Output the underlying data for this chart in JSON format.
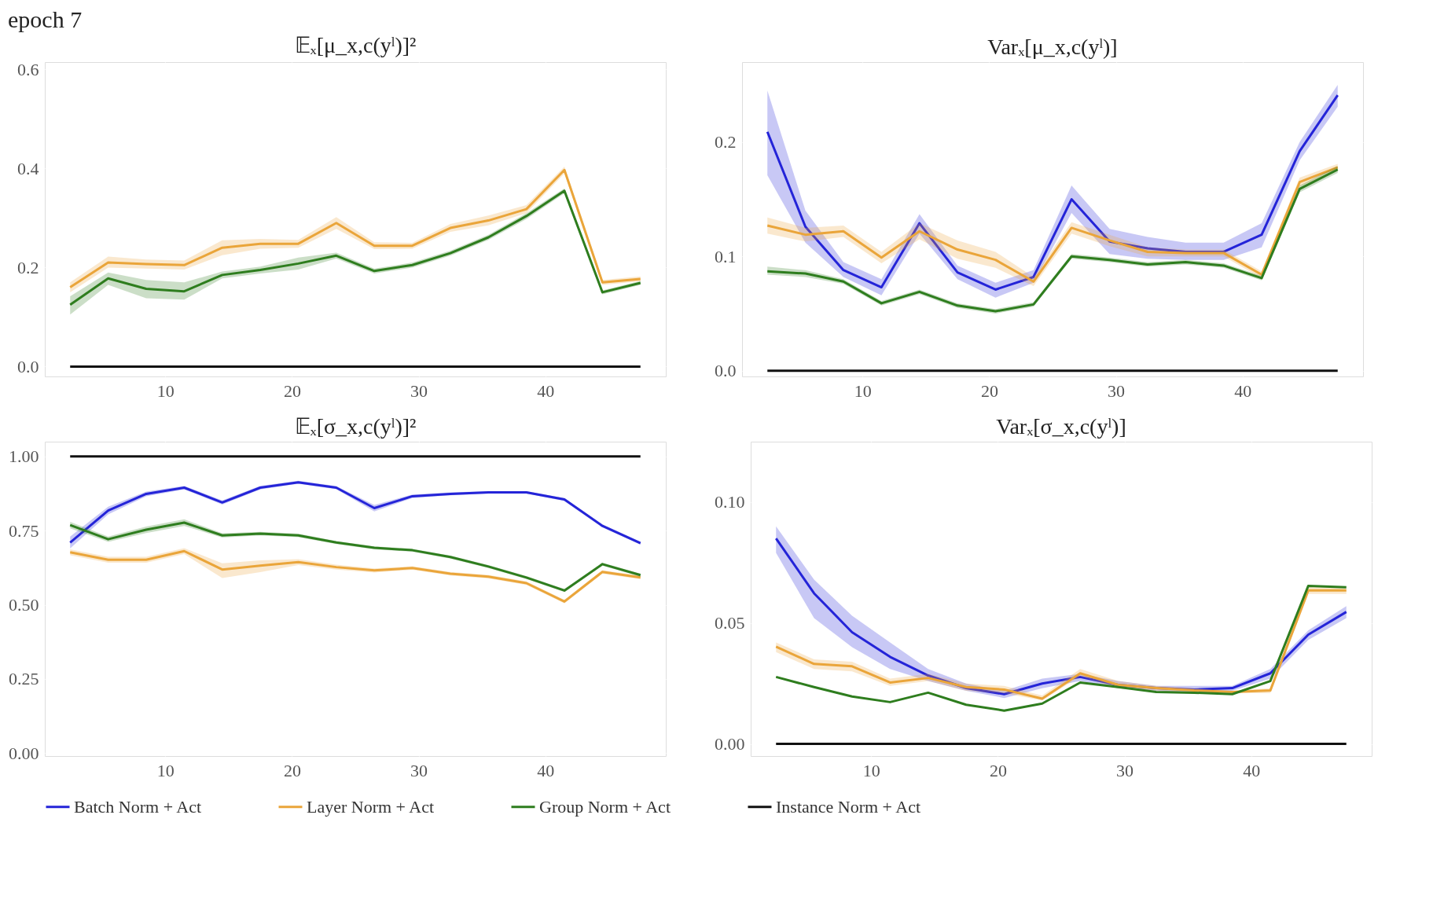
{
  "chart_data": [
    {
      "type": "line",
      "title": "𝔼ₓ[μ_x,c(yˡ)]²",
      "annotations": [
        "epoch 7"
      ],
      "x": [
        2.5,
        5.5,
        8.5,
        11.5,
        14.5,
        17.5,
        20.5,
        23.5,
        26.5,
        29.5,
        32.5,
        35.5,
        38.5,
        41.5,
        44.5,
        47.5
      ],
      "xlim": [
        0.5,
        49.5
      ],
      "xticks": [
        10,
        20,
        30,
        40
      ],
      "ylim": [
        -0.02,
        0.615
      ],
      "yticks": [
        {
          "value": 0,
          "label": "0.0"
        },
        0.2,
        0.4,
        0.6
      ],
      "grid": true,
      "legend": "bottom",
      "series": [
        {
          "name": "Layer Norm + Act",
          "color": "#eaa53a",
          "values": [
            0.16,
            0.21,
            0.207,
            0.205,
            0.24,
            0.248,
            0.248,
            0.29,
            0.244,
            0.244,
            0.28,
            0.295,
            0.318,
            0.397,
            0.17,
            0.177
          ],
          "lower": [
            0.15,
            0.2,
            0.198,
            0.196,
            0.225,
            0.238,
            0.24,
            0.278,
            0.237,
            0.238,
            0.272,
            0.285,
            0.31,
            0.39,
            0.165,
            0.172
          ],
          "upper": [
            0.17,
            0.222,
            0.216,
            0.214,
            0.255,
            0.258,
            0.256,
            0.302,
            0.251,
            0.25,
            0.288,
            0.305,
            0.326,
            0.404,
            0.175,
            0.182
          ]
        },
        {
          "name": "Group Norm + Act",
          "color": "#2e7d1e",
          "values": [
            0.125,
            0.178,
            0.157,
            0.152,
            0.185,
            0.195,
            0.208,
            0.224,
            0.193,
            0.205,
            0.229,
            0.261,
            0.304,
            0.355,
            0.15,
            0.169
          ],
          "lower": [
            0.105,
            0.165,
            0.138,
            0.135,
            0.178,
            0.188,
            0.196,
            0.218,
            0.188,
            0.2,
            0.224,
            0.256,
            0.298,
            0.35,
            0.146,
            0.165
          ],
          "upper": [
            0.142,
            0.19,
            0.175,
            0.17,
            0.192,
            0.202,
            0.22,
            0.23,
            0.198,
            0.21,
            0.234,
            0.266,
            0.31,
            0.36,
            0.154,
            0.173
          ]
        },
        {
          "name": "Instance Norm + Act",
          "color": "#111111",
          "values": [
            0,
            0,
            0,
            0,
            0,
            0,
            0,
            0,
            0,
            0,
            0,
            0,
            0,
            0,
            0,
            0
          ]
        }
      ]
    },
    {
      "type": "line",
      "title": "Varₓ[μ_x,c(yˡ)]",
      "x": [
        2.5,
        5.5,
        8.5,
        11.5,
        14.5,
        17.5,
        20.5,
        23.5,
        26.5,
        29.5,
        32.5,
        35.5,
        38.5,
        41.5,
        44.5,
        47.5
      ],
      "xlim": [
        0.5,
        49.5
      ],
      "xticks": [
        10,
        20,
        30,
        40
      ],
      "ylim": [
        -0.005,
        0.27
      ],
      "yticks": [
        {
          "value": 0,
          "label": "0.0"
        },
        0.1,
        0.2
      ],
      "grid": true,
      "legend": "bottom",
      "series": [
        {
          "name": "Batch Norm + Act",
          "color": "#2424d8",
          "values": [
            0.209,
            0.126,
            0.088,
            0.073,
            0.129,
            0.086,
            0.071,
            0.082,
            0.15,
            0.113,
            0.107,
            0.104,
            0.104,
            0.119,
            0.192,
            0.241
          ],
          "lower": [
            0.171,
            0.112,
            0.082,
            0.066,
            0.12,
            0.08,
            0.064,
            0.077,
            0.138,
            0.102,
            0.098,
            0.097,
            0.097,
            0.108,
            0.184,
            0.231
          ],
          "upper": [
            0.245,
            0.14,
            0.095,
            0.08,
            0.137,
            0.092,
            0.077,
            0.088,
            0.162,
            0.124,
            0.117,
            0.112,
            0.112,
            0.129,
            0.2,
            0.25
          ]
        },
        {
          "name": "Layer Norm + Act",
          "color": "#eaa53a",
          "values": [
            0.127,
            0.119,
            0.122,
            0.099,
            0.122,
            0.106,
            0.097,
            0.078,
            0.125,
            0.114,
            0.104,
            0.103,
            0.103,
            0.084,
            0.165,
            0.178
          ],
          "lower": [
            0.12,
            0.113,
            0.117,
            0.094,
            0.115,
            0.098,
            0.09,
            0.074,
            0.12,
            0.109,
            0.1,
            0.1,
            0.1,
            0.081,
            0.161,
            0.175
          ],
          "upper": [
            0.134,
            0.125,
            0.127,
            0.104,
            0.129,
            0.114,
            0.104,
            0.082,
            0.13,
            0.119,
            0.108,
            0.106,
            0.106,
            0.087,
            0.169,
            0.181
          ]
        },
        {
          "name": "Group Norm + Act",
          "color": "#2e7d1e",
          "values": [
            0.087,
            0.085,
            0.078,
            0.059,
            0.069,
            0.057,
            0.052,
            0.058,
            0.1,
            0.097,
            0.093,
            0.095,
            0.092,
            0.081,
            0.159,
            0.176
          ],
          "lower": [
            0.084,
            0.082,
            0.076,
            0.057,
            0.067,
            0.055,
            0.05,
            0.056,
            0.098,
            0.095,
            0.091,
            0.093,
            0.09,
            0.079,
            0.156,
            0.173
          ],
          "upper": [
            0.091,
            0.088,
            0.08,
            0.061,
            0.071,
            0.059,
            0.054,
            0.06,
            0.102,
            0.099,
            0.095,
            0.097,
            0.094,
            0.083,
            0.162,
            0.179
          ]
        },
        {
          "name": "Instance Norm + Act",
          "color": "#111111",
          "values": [
            0,
            0,
            0,
            0,
            0,
            0,
            0,
            0,
            0,
            0,
            0,
            0,
            0,
            0,
            0,
            0
          ]
        }
      ]
    },
    {
      "type": "line",
      "title": "𝔼ₓ[σ_x,c(yˡ)]²",
      "x": [
        2.5,
        5.5,
        8.5,
        11.5,
        14.5,
        17.5,
        20.5,
        23.5,
        26.5,
        29.5,
        32.5,
        35.5,
        38.5,
        41.5,
        44.5,
        47.5
      ],
      "xlim": [
        0.5,
        49.5
      ],
      "xticks": [
        10,
        20,
        30,
        40
      ],
      "ylim": [
        -0.01,
        1.05
      ],
      "yticks": [
        {
          "value": 0,
          "label": "0.00"
        },
        0.25,
        {
          "value": 0.5,
          "label": "0.50"
        },
        0.75,
        {
          "value": 1,
          "label": "1.00"
        }
      ],
      "grid": true,
      "legend": "bottom",
      "series": [
        {
          "name": "Batch Norm + Act",
          "color": "#2424d8",
          "values": [
            0.71,
            0.818,
            0.874,
            0.895,
            0.845,
            0.895,
            0.913,
            0.895,
            0.826,
            0.866,
            0.874,
            0.879,
            0.879,
            0.855,
            0.766,
            0.708
          ],
          "lower": [
            0.69,
            0.805,
            0.866,
            0.889,
            0.838,
            0.889,
            0.908,
            0.89,
            0.815,
            0.86,
            0.869,
            0.875,
            0.875,
            0.85,
            0.761,
            0.703
          ],
          "upper": [
            0.73,
            0.831,
            0.882,
            0.901,
            0.852,
            0.901,
            0.918,
            0.9,
            0.837,
            0.872,
            0.879,
            0.883,
            0.883,
            0.86,
            0.771,
            0.713
          ]
        },
        {
          "name": "Layer Norm + Act",
          "color": "#eaa53a",
          "values": [
            0.677,
            0.652,
            0.652,
            0.681,
            0.619,
            0.632,
            0.644,
            0.627,
            0.616,
            0.624,
            0.605,
            0.595,
            0.573,
            0.511,
            0.611,
            0.592
          ],
          "lower": [
            0.667,
            0.642,
            0.642,
            0.671,
            0.59,
            0.61,
            0.634,
            0.619,
            0.609,
            0.618,
            0.599,
            0.589,
            0.567,
            0.505,
            0.605,
            0.586
          ],
          "upper": [
            0.687,
            0.662,
            0.662,
            0.691,
            0.64,
            0.65,
            0.654,
            0.635,
            0.623,
            0.63,
            0.611,
            0.601,
            0.579,
            0.517,
            0.617,
            0.598
          ]
        },
        {
          "name": "Group Norm + Act",
          "color": "#2e7d1e",
          "values": [
            0.769,
            0.721,
            0.753,
            0.777,
            0.734,
            0.74,
            0.734,
            0.71,
            0.692,
            0.684,
            0.661,
            0.629,
            0.592,
            0.548,
            0.637,
            0.6
          ],
          "lower": [
            0.758,
            0.712,
            0.742,
            0.766,
            0.727,
            0.734,
            0.728,
            0.705,
            0.687,
            0.679,
            0.656,
            0.624,
            0.587,
            0.543,
            0.632,
            0.595
          ],
          "upper": [
            0.78,
            0.73,
            0.764,
            0.788,
            0.741,
            0.746,
            0.74,
            0.715,
            0.697,
            0.689,
            0.666,
            0.634,
            0.597,
            0.553,
            0.642,
            0.605
          ]
        },
        {
          "name": "Instance Norm + Act",
          "color": "#111111",
          "values": [
            1,
            1,
            1,
            1,
            1,
            1,
            1,
            1,
            1,
            1,
            1,
            1,
            1,
            1,
            1,
            1
          ]
        }
      ]
    },
    {
      "type": "line",
      "title": "Varₓ[σ_x,c(yˡ)]",
      "x": [
        2.5,
        5.5,
        8.5,
        11.5,
        14.5,
        17.5,
        20.5,
        23.5,
        26.5,
        29.5,
        32.5,
        35.5,
        38.5,
        41.5,
        44.5,
        47.5
      ],
      "xlim": [
        0.5,
        49.5
      ],
      "xticks": [
        10,
        20,
        30,
        40
      ],
      "ylim": [
        -0.005,
        0.125
      ],
      "yticks": [
        {
          "value": 0,
          "label": "0.00"
        },
        0.05,
        {
          "value": 0.1,
          "label": "0.10"
        }
      ],
      "grid": true,
      "legend": "bottom",
      "series": [
        {
          "name": "Batch Norm + Act",
          "color": "#2424d8",
          "values": [
            0.085,
            0.0623,
            0.0462,
            0.036,
            0.0283,
            0.0231,
            0.0206,
            0.025,
            0.0277,
            0.0244,
            0.0231,
            0.0225,
            0.0231,
            0.0292,
            0.0452,
            0.0546
          ],
          "lower": [
            0.079,
            0.052,
            0.04,
            0.031,
            0.026,
            0.022,
            0.019,
            0.023,
            0.026,
            0.023,
            0.022,
            0.021,
            0.022,
            0.027,
            0.043,
            0.052
          ],
          "upper": [
            0.09,
            0.068,
            0.053,
            0.042,
            0.031,
            0.025,
            0.022,
            0.027,
            0.029,
            0.026,
            0.024,
            0.024,
            0.024,
            0.031,
            0.047,
            0.057
          ]
        },
        {
          "name": "Layer Norm + Act",
          "color": "#eaa53a",
          "values": [
            0.0402,
            0.0331,
            0.0321,
            0.0254,
            0.0273,
            0.0235,
            0.0225,
            0.0187,
            0.0292,
            0.0244,
            0.0231,
            0.0221,
            0.0215,
            0.0221,
            0.0635,
            0.0635
          ],
          "lower": [
            0.038,
            0.031,
            0.03,
            0.024,
            0.026,
            0.022,
            0.021,
            0.018,
            0.028,
            0.023,
            0.022,
            0.021,
            0.021,
            0.021,
            0.062,
            0.062
          ],
          "upper": [
            0.042,
            0.035,
            0.034,
            0.027,
            0.029,
            0.025,
            0.024,
            0.02,
            0.031,
            0.026,
            0.024,
            0.023,
            0.022,
            0.023,
            0.065,
            0.065
          ]
        },
        {
          "name": "Group Norm + Act",
          "color": "#2e7d1e",
          "values": [
            0.0277,
            0.0235,
            0.0196,
            0.0173,
            0.0212,
            0.0162,
            0.0138,
            0.0167,
            0.0254,
            0.0235,
            0.0215,
            0.0212,
            0.0206,
            0.026,
            0.0654,
            0.0648
          ]
        },
        {
          "name": "Instance Norm + Act",
          "color": "#111111",
          "values": [
            0,
            0,
            0,
            0,
            0,
            0,
            0,
            0,
            0,
            0,
            0,
            0,
            0,
            0,
            0,
            0
          ]
        }
      ]
    }
  ]
}
